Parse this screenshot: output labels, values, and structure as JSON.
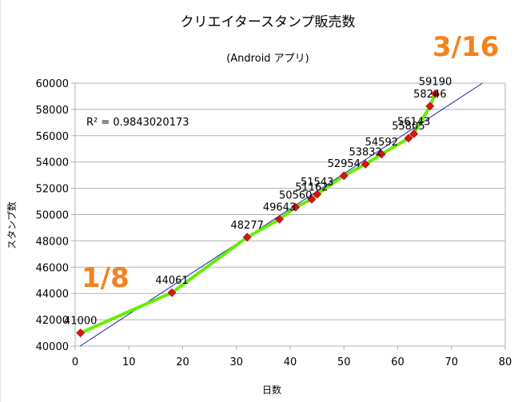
{
  "chart_data": {
    "type": "scatter",
    "title": "クリエイタースタンプ販売数",
    "subtitle": "(Android アプリ)",
    "xlabel": "日数",
    "ylabel": "スタンプ数",
    "xlim": [
      0,
      80
    ],
    "ylim": [
      40000,
      60000
    ],
    "x_ticks": [
      0,
      10,
      20,
      30,
      40,
      50,
      60,
      70,
      80
    ],
    "y_ticks": [
      40000,
      42000,
      44000,
      46000,
      48000,
      50000,
      52000,
      54000,
      56000,
      58000,
      60000
    ],
    "grid": "horizontal",
    "series": [
      {
        "color": "#66ee00",
        "marker_color": "#dd1111",
        "x": [
          1,
          18,
          32,
          38,
          41,
          44,
          45,
          50,
          54,
          57,
          62,
          63,
          66,
          67
        ],
        "y": [
          41000,
          44061,
          48277,
          49643,
          50560,
          51162,
          51543,
          52954,
          53832,
          54592,
          55805,
          56143,
          58246,
          59190
        ],
        "labels": [
          "41000",
          "44061",
          "48277",
          "49643",
          "50560",
          "51162",
          "51543",
          "52954",
          "53832",
          "54592",
          "55805",
          "56143",
          "58246",
          "59190"
        ]
      }
    ],
    "trendline": {
      "color": "#2222aa",
      "r2_text": "R² = 0.9843020173"
    },
    "annotations": [
      {
        "text": "1/8",
        "color": "#f58220"
      },
      {
        "text": "3/16",
        "color": "#f58220"
      }
    ]
  }
}
